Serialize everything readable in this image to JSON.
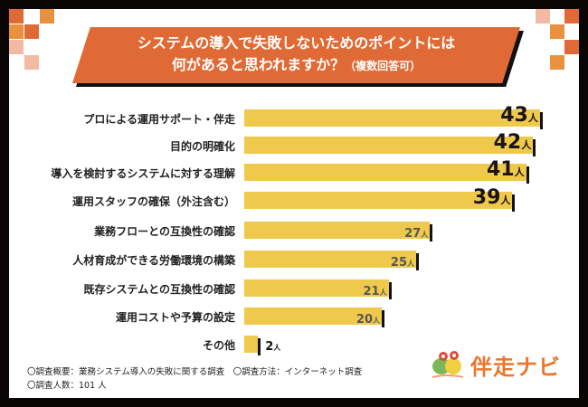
{
  "colors": {
    "bar": "#efc94c",
    "banner": "#e06a35",
    "logo": "#e8782e",
    "frame": "#0a0606"
  },
  "chart_data": {
    "type": "bar",
    "orientation": "horizontal",
    "title": "システムの導入で失敗しないためのポイントには何があると思われますか？（複数回答可）",
    "title_line1": "システムの導入で失敗しないためのポイントには",
    "title_line2": "何があると思われますか？",
    "title_note": "（複数回答可）",
    "unit": "人",
    "categories": [
      "プロによる運用サポート・伴走",
      "目的の明確化",
      "導入を検討するシステムに対する理解",
      "運用スタッフの確保（外注含む）",
      "業務フローとの互換性の確認",
      "人材育成ができる労働環境の構築",
      "既存システムとの互換性の確認",
      "運用コストや予算の設定",
      "その他"
    ],
    "values": [
      43,
      42,
      41,
      39,
      27,
      25,
      21,
      20,
      2
    ]
  },
  "footer": {
    "note1": "〇調査概要：業務システム導入の失敗に関する調査　〇調査方法：インターネット調査",
    "note2": "〇調査人数：101 人"
  },
  "logo": {
    "name": "伴走ナビ"
  }
}
